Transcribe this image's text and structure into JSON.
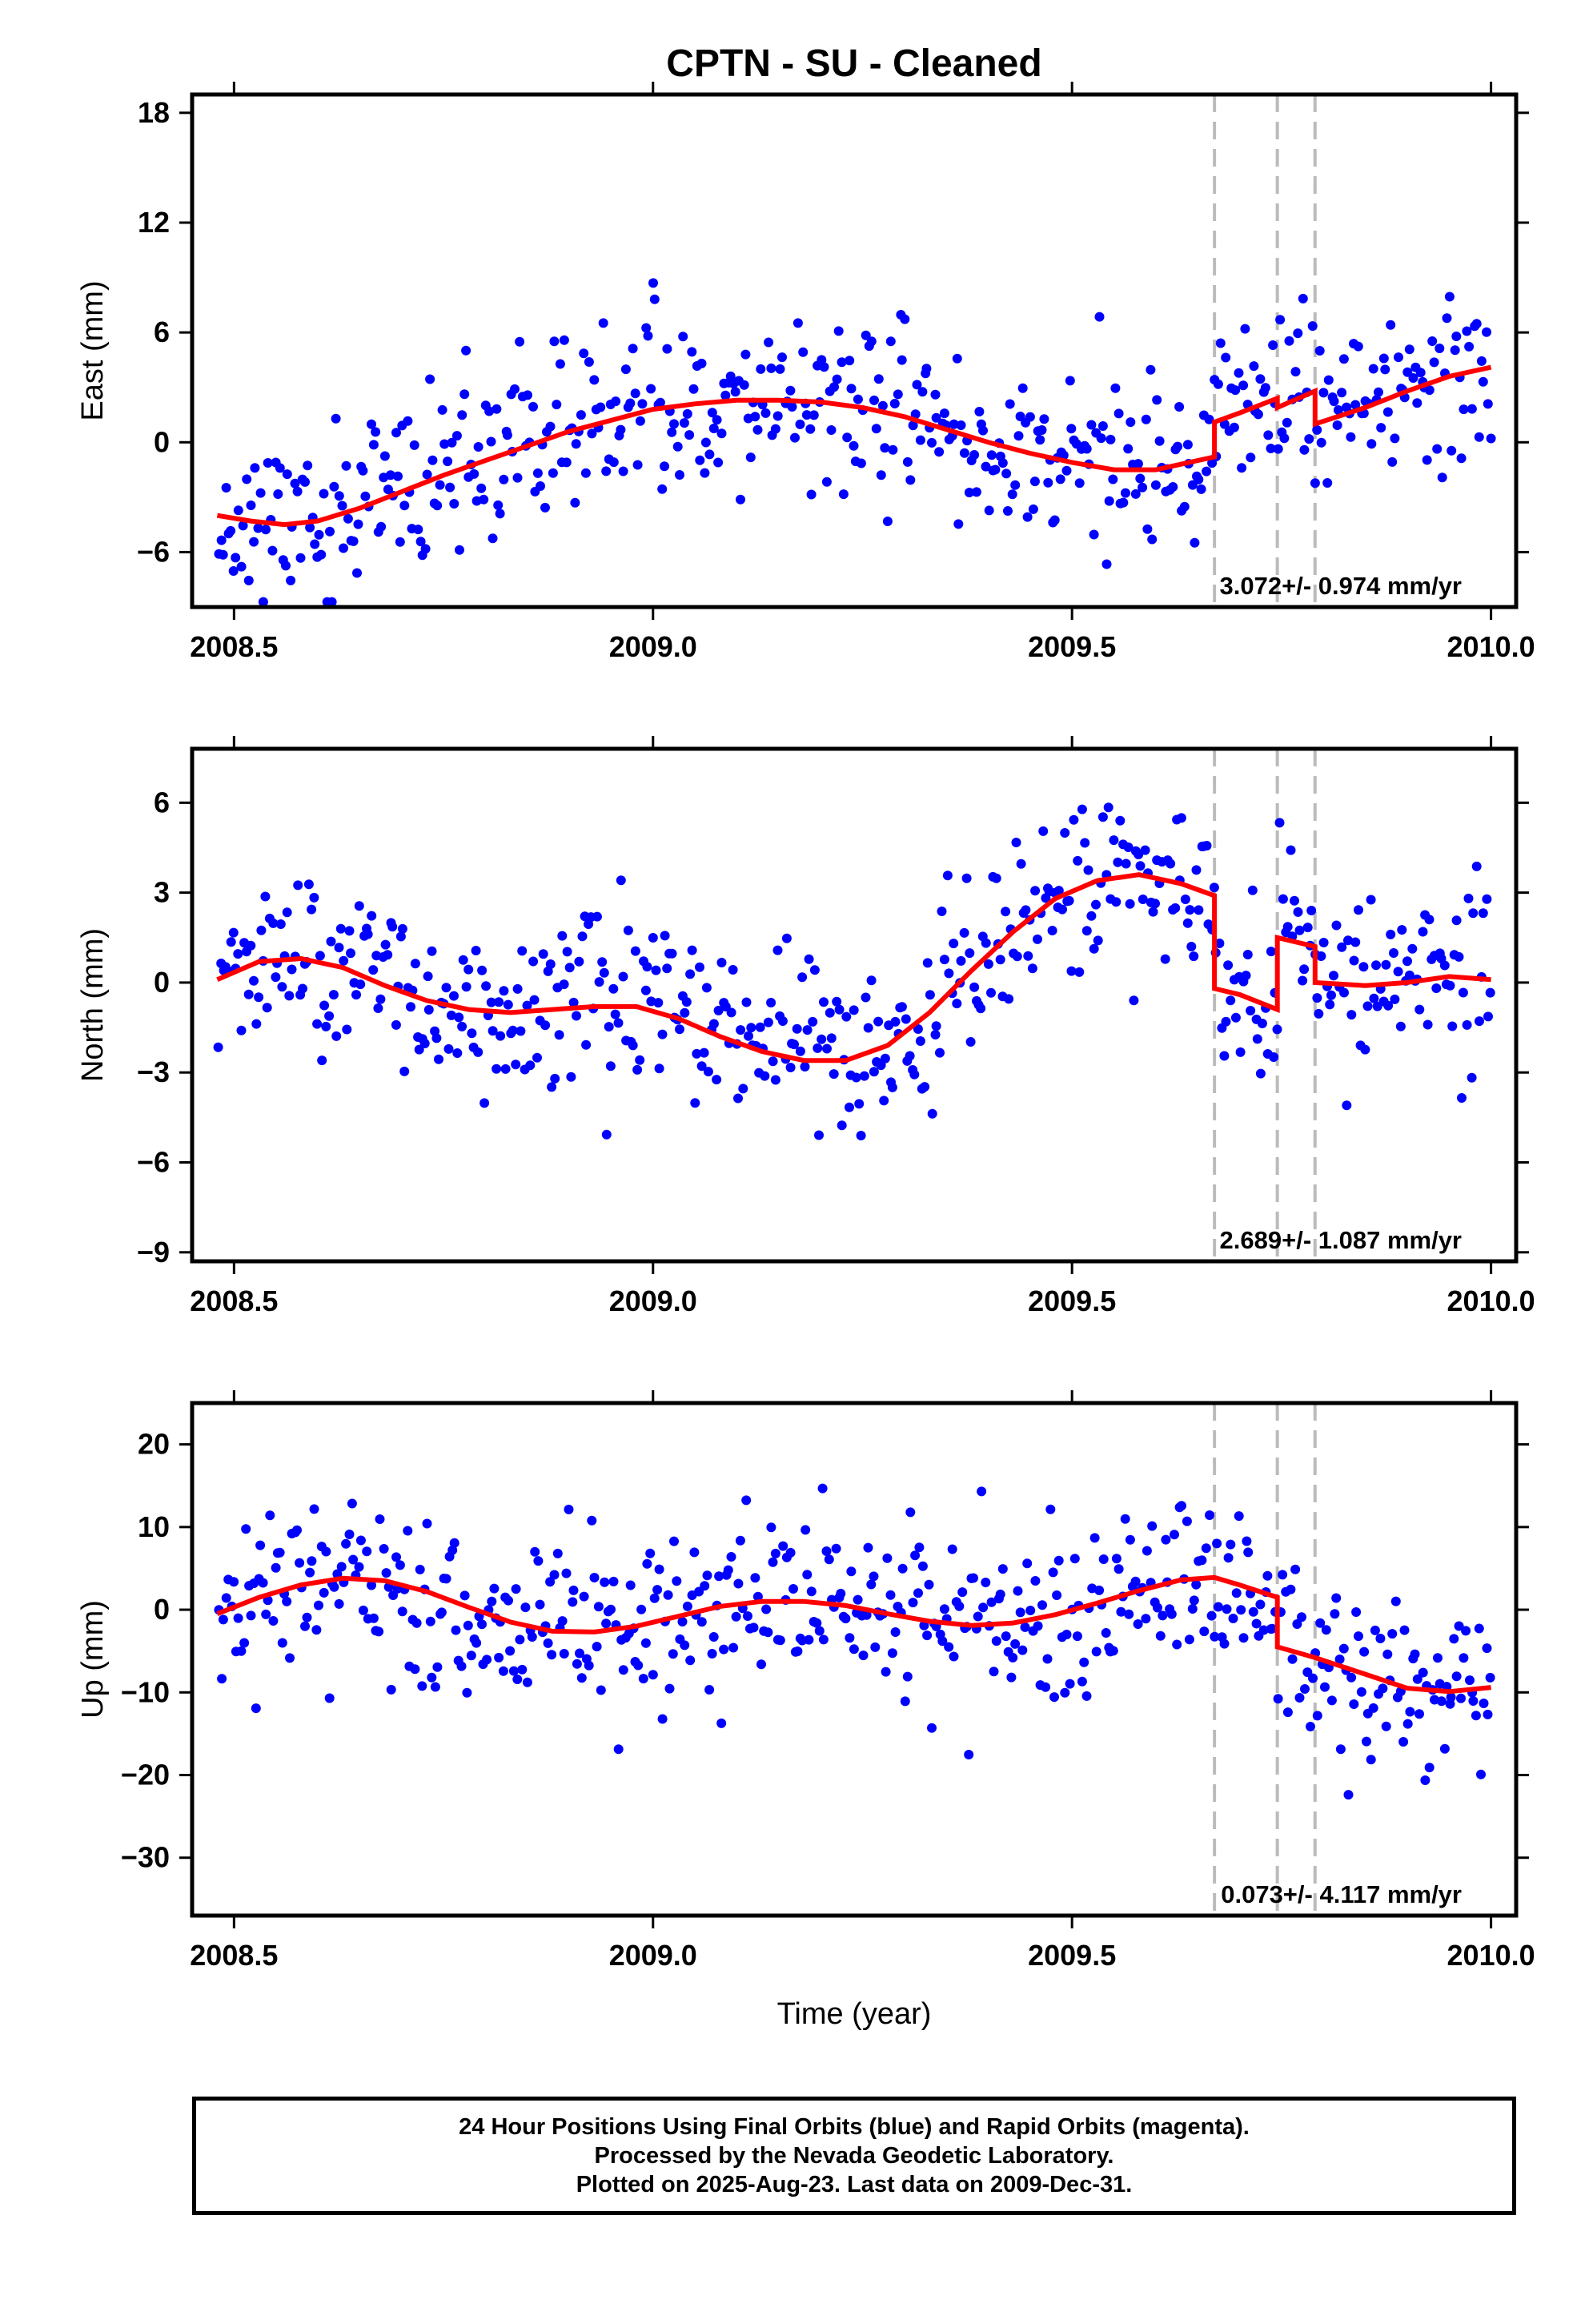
{
  "title": "CPTN  - SU - Cleaned",
  "colors": {
    "points": "#0000ff",
    "model": "#ff0000",
    "offset_lines": "#bbbbbb",
    "frame": "#000000"
  },
  "chart_data": [
    {
      "type": "scatter",
      "component": "East",
      "ylabel": "East (mm)",
      "xlabel": "",
      "xlim": [
        2008.45,
        2010.03
      ],
      "ylim": [
        -9,
        19
      ],
      "xticks": [
        2008.5,
        2009.0,
        2009.5,
        2010.0
      ],
      "xtick_labels": [
        "2008.5",
        "2009.0",
        "2009.5",
        "2010.0"
      ],
      "yticks": [
        -6,
        0,
        6,
        12,
        18
      ],
      "ytick_labels": [
        "−6",
        "0",
        "6",
        "12",
        "18"
      ],
      "velocity_label": "3.072+/- 0.974 mm/yr",
      "offset_epochs": [
        2009.67,
        2009.745,
        2009.79
      ],
      "model": {
        "x": [
          2008.48,
          2008.52,
          2008.56,
          2008.6,
          2008.65,
          2008.7,
          2008.75,
          2008.8,
          2008.85,
          2008.9,
          2008.95,
          2009.0,
          2009.05,
          2009.1,
          2009.15,
          2009.2,
          2009.25,
          2009.3,
          2009.35,
          2009.4,
          2009.45,
          2009.5,
          2009.55,
          2009.6,
          2009.65,
          2009.67,
          2009.67,
          2009.7,
          2009.745,
          2009.745,
          2009.79,
          2009.79,
          2009.85,
          2009.9,
          2009.95,
          2010.0
        ],
        "y": [
          -4.0,
          -4.3,
          -4.5,
          -4.3,
          -3.6,
          -2.7,
          -1.8,
          -1.0,
          -0.2,
          0.6,
          1.2,
          1.8,
          2.1,
          2.3,
          2.3,
          2.2,
          1.9,
          1.4,
          0.7,
          0.0,
          -0.6,
          -1.1,
          -1.5,
          -1.5,
          -1.0,
          -0.8,
          1.1,
          1.6,
          2.4,
          1.9,
          2.8,
          1.0,
          1.9,
          2.8,
          3.6,
          4.1
        ]
      },
      "series_seed": 11
    },
    {
      "type": "scatter",
      "component": "North",
      "ylabel": "North (mm)",
      "xlabel": "",
      "xlim": [
        2008.45,
        2010.03
      ],
      "ylim": [
        -9.3,
        7.8
      ],
      "xticks": [
        2008.5,
        2009.0,
        2009.5,
        2010.0
      ],
      "xtick_labels": [
        "2008.5",
        "2009.0",
        "2009.5",
        "2010.0"
      ],
      "yticks": [
        -9,
        -6,
        -3,
        0,
        3,
        6
      ],
      "ytick_labels": [
        "−9",
        "−6",
        "−3",
        "0",
        "3",
        "6"
      ],
      "velocity_label": "2.689+/- 1.087 mm/yr",
      "offset_epochs": [
        2009.67,
        2009.745,
        2009.79
      ],
      "model": {
        "x": [
          2008.48,
          2008.53,
          2008.58,
          2008.63,
          2008.68,
          2008.73,
          2008.78,
          2008.83,
          2008.88,
          2008.93,
          2008.98,
          2009.03,
          2009.08,
          2009.13,
          2009.18,
          2009.23,
          2009.28,
          2009.33,
          2009.38,
          2009.43,
          2009.48,
          2009.53,
          2009.58,
          2009.63,
          2009.67,
          2009.67,
          2009.7,
          2009.745,
          2009.745,
          2009.79,
          2009.79,
          2009.85,
          2009.9,
          2009.95,
          2010.0
        ],
        "y": [
          0.1,
          0.7,
          0.8,
          0.5,
          -0.1,
          -0.6,
          -0.9,
          -1.0,
          -0.9,
          -0.8,
          -0.8,
          -1.2,
          -1.8,
          -2.3,
          -2.6,
          -2.6,
          -2.1,
          -1.0,
          0.4,
          1.7,
          2.8,
          3.4,
          3.6,
          3.3,
          2.9,
          -0.2,
          -0.4,
          -0.9,
          1.5,
          1.2,
          0.0,
          -0.1,
          0.0,
          0.2,
          0.1
        ]
      },
      "series_seed": 23
    },
    {
      "type": "scatter",
      "component": "Up",
      "ylabel": "Up (mm)",
      "xlabel": "Time (year)",
      "xlim": [
        2008.45,
        2010.03
      ],
      "ylim": [
        -37,
        25
      ],
      "xticks": [
        2008.5,
        2009.0,
        2009.5,
        2010.0
      ],
      "xtick_labels": [
        "2008.5",
        "2009.0",
        "2009.5",
        "2010.0"
      ],
      "yticks": [
        -30,
        -20,
        -10,
        0,
        10,
        20
      ],
      "ytick_labels": [
        "−30",
        "−20",
        "−10",
        "0",
        "10",
        "20"
      ],
      "velocity_label": "0.073+/- 4.117 mm/yr",
      "offset_epochs": [
        2009.67,
        2009.745,
        2009.79
      ],
      "model": {
        "x": [
          2008.48,
          2008.53,
          2008.58,
          2008.63,
          2008.68,
          2008.73,
          2008.78,
          2008.83,
          2008.88,
          2008.93,
          2008.98,
          2009.03,
          2009.08,
          2009.13,
          2009.18,
          2009.23,
          2009.28,
          2009.33,
          2009.38,
          2009.43,
          2009.48,
          2009.53,
          2009.58,
          2009.63,
          2009.67,
          2009.7,
          2009.745,
          2009.745,
          2009.79,
          2009.85,
          2009.9,
          2009.95,
          2010.0
        ],
        "y": [
          -0.5,
          1.5,
          3.0,
          3.8,
          3.5,
          2.2,
          0.3,
          -1.5,
          -2.6,
          -2.7,
          -2.0,
          -0.8,
          0.4,
          1.0,
          1.0,
          0.5,
          -0.5,
          -1.4,
          -1.9,
          -1.6,
          -0.6,
          0.8,
          2.3,
          3.6,
          3.9,
          3.0,
          1.5,
          -4.5,
          -5.8,
          -7.8,
          -9.5,
          -9.9,
          -9.4
        ]
      },
      "series_seed": 37
    }
  ],
  "footer": {
    "line1": "24 Hour Positions Using Final Orbits (blue) and Rapid Orbits (magenta).",
    "line2": "Processed by the Nevada Geodetic Laboratory.",
    "line3": "Plotted on 2025-Aug-23. Last data on 2009-Dec-31."
  }
}
